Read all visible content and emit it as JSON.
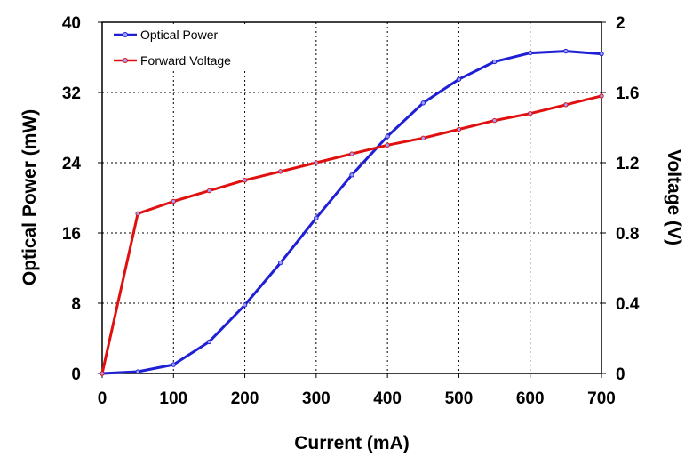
{
  "chart_data": {
    "type": "line",
    "xlabel": "Current (mA)",
    "ylabel": "Optical Power (mW)",
    "y2label": "Voltage (V)",
    "xlim": [
      0,
      700
    ],
    "ylim": [
      0,
      40
    ],
    "y2lim": [
      0,
      2
    ],
    "x_ticks": [
      "0",
      "100",
      "200",
      "300",
      "400",
      "500",
      "600",
      "700"
    ],
    "y_ticks": [
      "0",
      "8",
      "16",
      "24",
      "32",
      "40"
    ],
    "y2_ticks": [
      "0",
      "0.4",
      "0.8",
      "1.2",
      "1.6",
      "2"
    ],
    "grid": true,
    "legend_position": "top-left",
    "series": [
      {
        "name": "Optical Power",
        "axis": "left",
        "color": "#1f1fd6",
        "x": [
          0,
          50,
          100,
          150,
          200,
          250,
          300,
          350,
          400,
          450,
          500,
          550,
          600,
          650,
          700
        ],
        "y": [
          0,
          0.2,
          1.0,
          3.6,
          7.8,
          12.6,
          17.7,
          22.6,
          27.0,
          30.8,
          33.5,
          35.5,
          36.5,
          36.7,
          36.4
        ]
      },
      {
        "name": "Forward Voltage",
        "axis": "right",
        "color": "#e01010",
        "x": [
          0,
          50,
          100,
          150,
          200,
          250,
          300,
          350,
          400,
          450,
          500,
          550,
          600,
          650,
          700
        ],
        "y": [
          0,
          0.91,
          0.98,
          1.04,
          1.1,
          1.15,
          1.2,
          1.25,
          1.3,
          1.34,
          1.39,
          1.44,
          1.48,
          1.53,
          1.58
        ]
      }
    ]
  }
}
